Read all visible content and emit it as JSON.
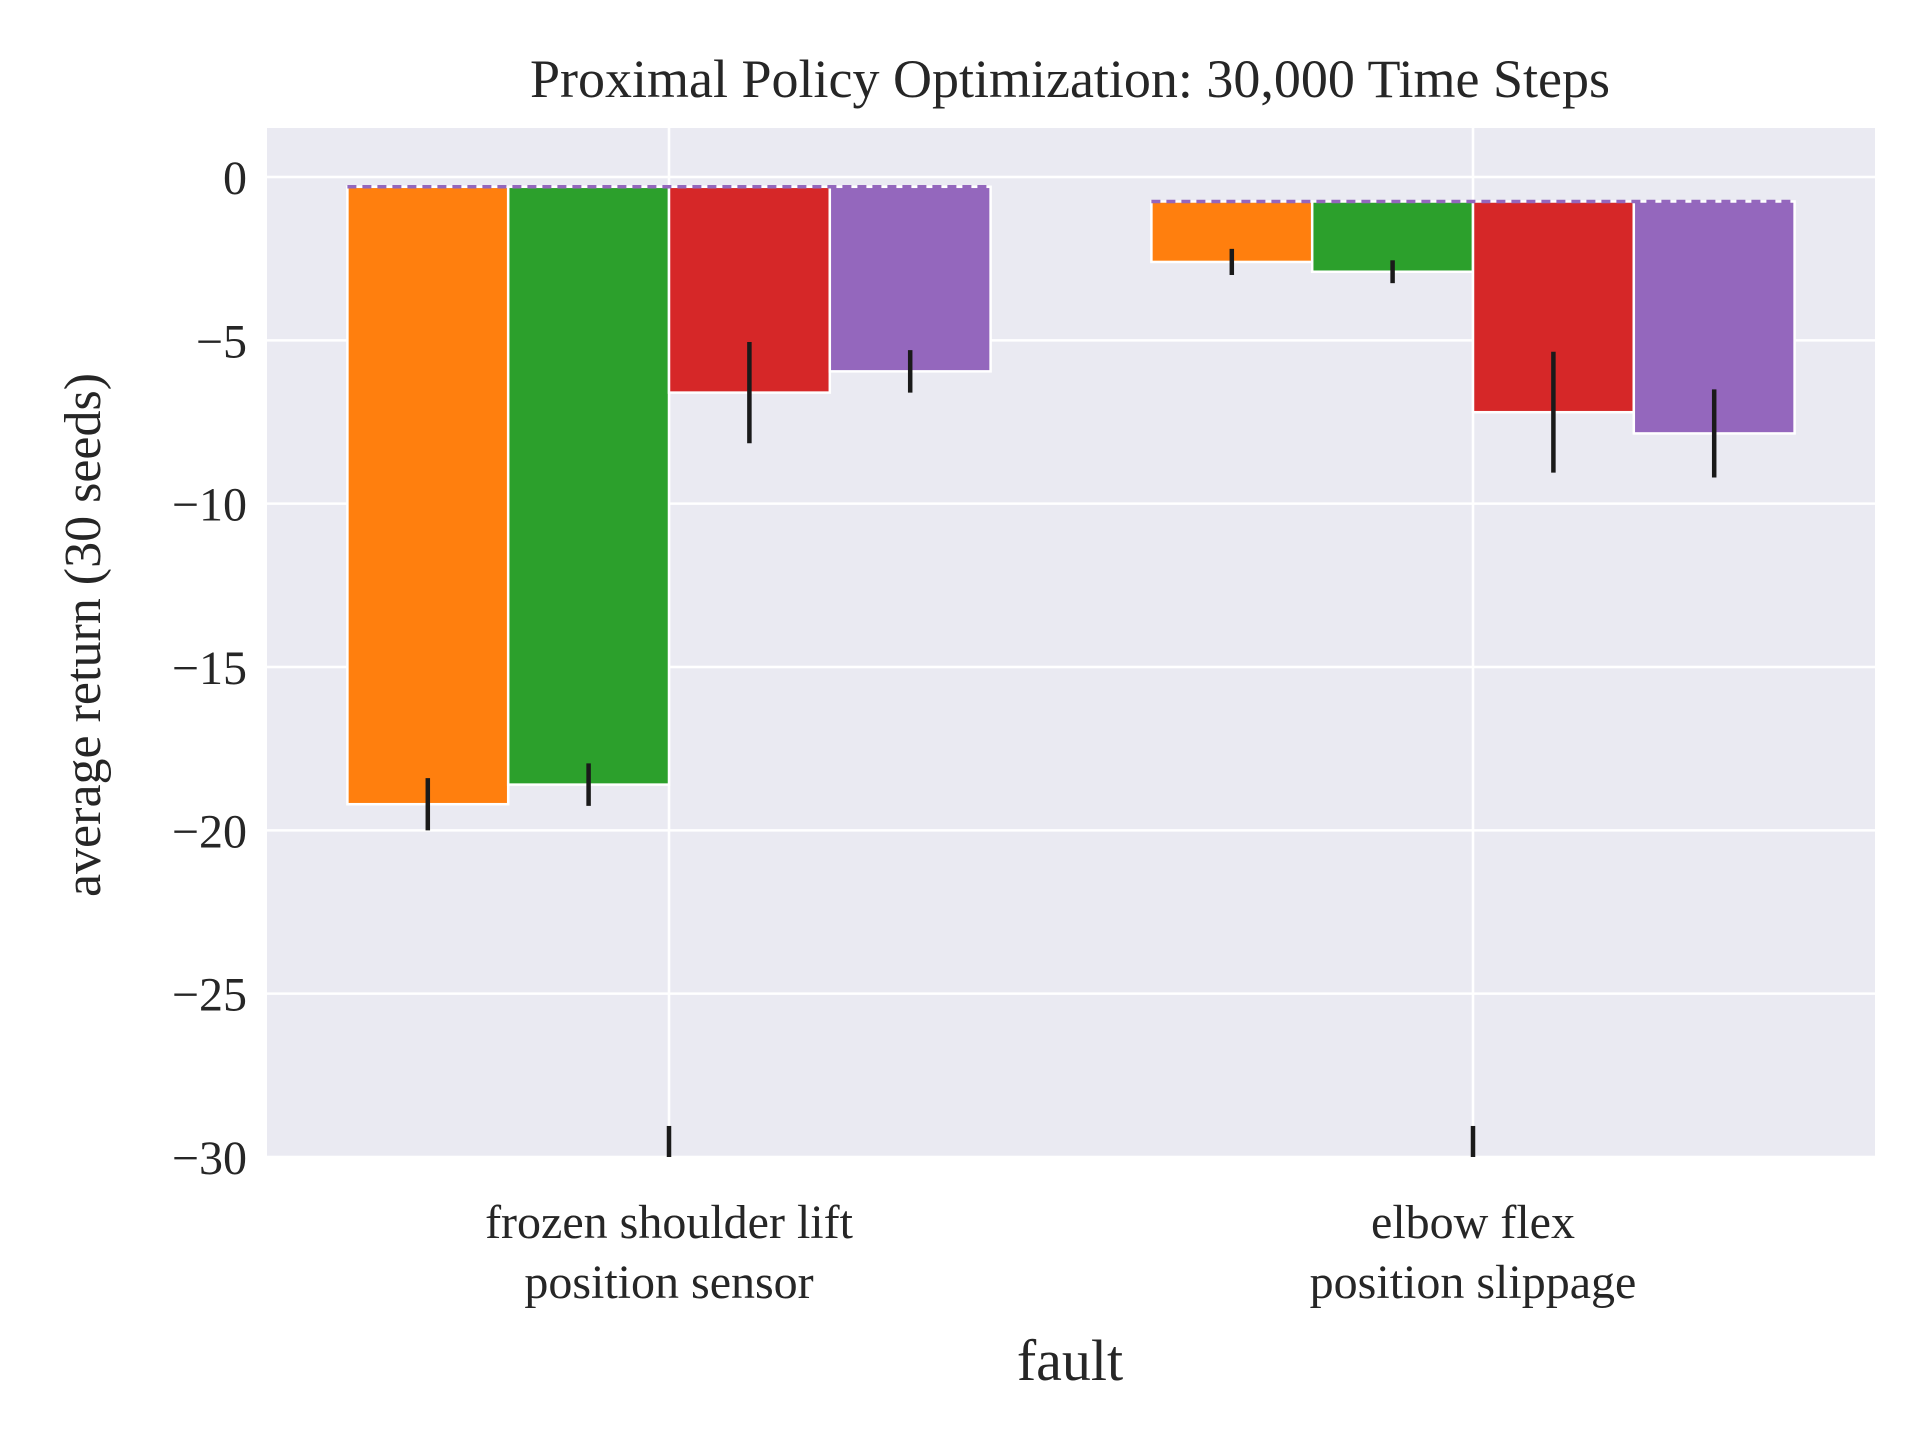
{
  "chart_data": {
    "type": "bar",
    "title": "Proximal Policy Optimization: 30,000 Time Steps",
    "xlabel": "fault",
    "ylabel": "average return (30 seeds)",
    "ylim": [
      -30,
      1.5
    ],
    "yticks": [
      0,
      -5,
      -10,
      -15,
      -20,
      -25,
      -30
    ],
    "ytick_labels": [
      "0",
      "−5",
      "−10",
      "−15",
      "−20",
      "−25",
      "−30"
    ],
    "grid": true,
    "categories": [
      {
        "lines": [
          "frozen shoulder lift",
          "position sensor"
        ]
      },
      {
        "lines": [
          "elbow flex",
          "position slippage"
        ]
      }
    ],
    "baseline": [
      -0.3,
      -0.75
    ],
    "baseline_color": "#9467bd",
    "series": [
      {
        "color": "#ff7f0e",
        "values": [
          -19.2,
          -2.6
        ],
        "err": [
          0.8,
          0.4
        ]
      },
      {
        "color": "#2ca02c",
        "values": [
          -18.6,
          -2.9
        ],
        "err": [
          0.65,
          0.35
        ]
      },
      {
        "color": "#d62728",
        "values": [
          -6.6,
          -7.2
        ],
        "err": [
          1.55,
          1.85
        ]
      },
      {
        "color": "#9467bd",
        "values": [
          -5.95,
          -7.85
        ],
        "err": [
          0.65,
          1.35
        ]
      }
    ],
    "colors": {
      "background": "#eaeaf2",
      "grid": "#ffffff",
      "errorbar": "#1a1a1a"
    }
  }
}
